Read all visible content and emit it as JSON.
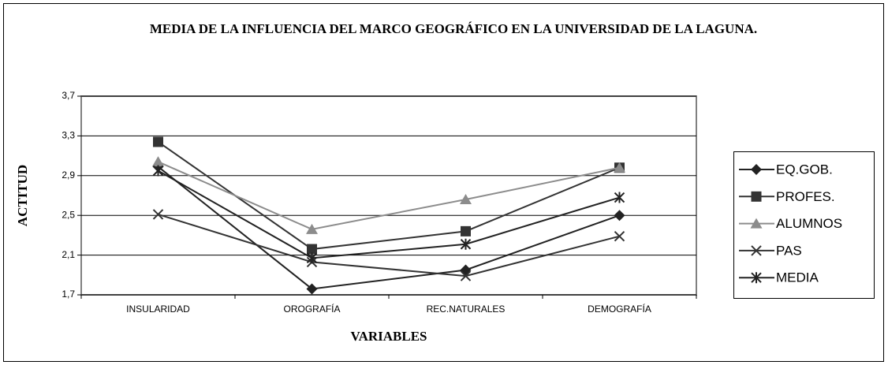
{
  "chart_data": {
    "type": "line",
    "title": "MEDIA DE LA INFLUENCIA DEL MARCO GEOGRÁFICO EN LA UNIVERSIDAD DE LA LAGUNA.",
    "x_label": "VARIABLES",
    "y_label": "ACTITUD",
    "categories": [
      "INSULARIDAD",
      "OROGRAFÍA",
      "REC.NATURALES",
      "DEMOGRAFÍA"
    ],
    "ylim": [
      1.7,
      3.7
    ],
    "yticks": [
      {
        "value": 1.7,
        "label": "1,7"
      },
      {
        "value": 2.1,
        "label": "2,1"
      },
      {
        "value": 2.5,
        "label": "2,5"
      },
      {
        "value": 2.9,
        "label": "2,9"
      },
      {
        "value": 3.3,
        "label": "3,3"
      },
      {
        "value": 3.7,
        "label": "3,7"
      }
    ],
    "grid": true,
    "legend": "right",
    "series": [
      {
        "name": "EQ.GOB.",
        "color": "#222222",
        "marker": "diamond",
        "values": [
          2.99,
          1.76,
          1.95,
          2.5
        ]
      },
      {
        "name": "PROFES.",
        "color": "#333333",
        "marker": "square",
        "values": [
          3.24,
          2.16,
          2.34,
          2.98
        ]
      },
      {
        "name": "ALUMNOS",
        "color": "#8c8c8c",
        "marker": "triangle",
        "values": [
          3.04,
          2.36,
          2.66,
          2.98
        ]
      },
      {
        "name": "PAS",
        "color": "#333333",
        "marker": "x",
        "values": [
          2.51,
          2.03,
          1.89,
          2.29
        ]
      },
      {
        "name": "MEDIA",
        "color": "#222222",
        "marker": "star",
        "values": [
          2.95,
          2.07,
          2.21,
          2.68
        ]
      }
    ]
  }
}
